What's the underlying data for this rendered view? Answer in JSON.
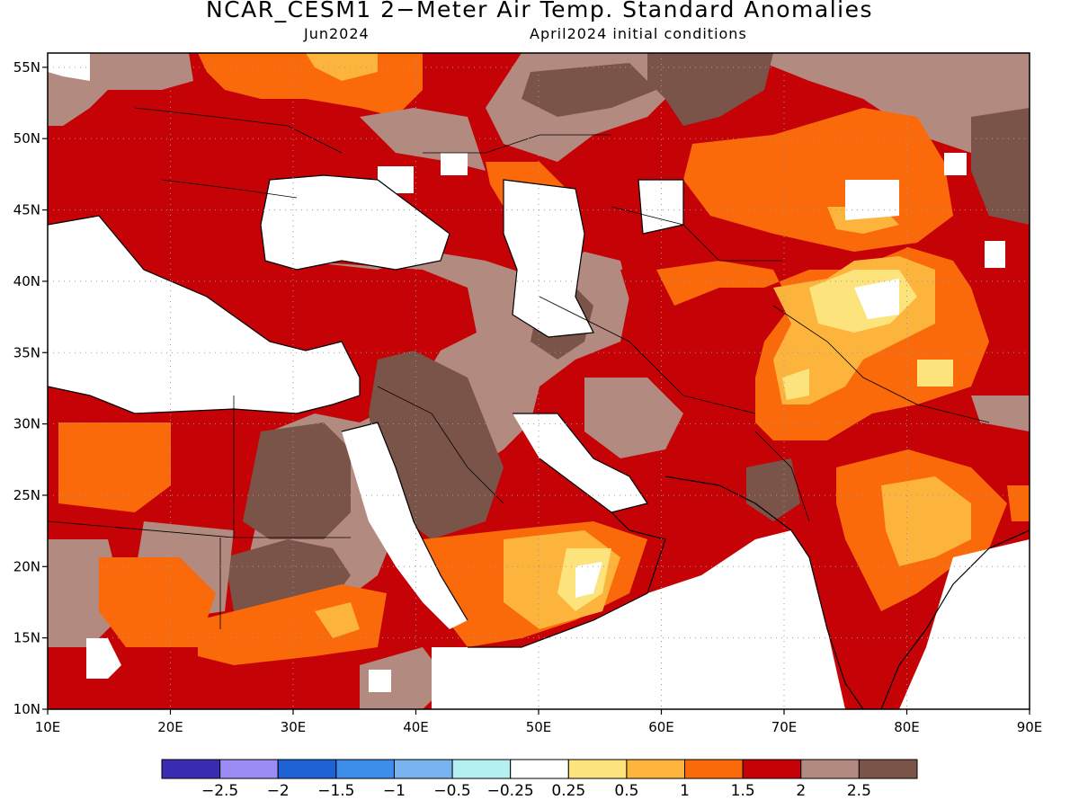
{
  "title": "NCAR_CESM1 2−Meter Air Temp. Standard Anomalies",
  "subtitle_left": "Jun2024",
  "subtitle_right": "April2024 initial conditions",
  "map_extent": {
    "lon_min": 10,
    "lon_max": 90,
    "lat_min": 10,
    "lat_max": 56
  },
  "lat_ticks": [
    "10N",
    "15N",
    "20N",
    "25N",
    "30N",
    "35N",
    "40N",
    "45N",
    "50N",
    "55N"
  ],
  "lon_ticks": [
    "10E",
    "20E",
    "30E",
    "40E",
    "50E",
    "60E",
    "70E",
    "80E",
    "90E"
  ],
  "colors": {
    "c_-2.5": "#3a2db2",
    "c_-2": "#9b8cf5",
    "c_-1.5": "#1e62d6",
    "c_-1": "#3d8eea",
    "c_-0.5": "#78b5f0",
    "c_-0.25": "#b4f0f2",
    "c_0": "#ffffff",
    "c_0.25": "#fde37c",
    "c_0.5": "#fdb43c",
    "c_1": "#fa6a0a",
    "c_1.5": "#c50307",
    "c_2": "#b38a80",
    "c_2.5": "#7b5449"
  },
  "colorbar": {
    "colors": [
      "#3a2db2",
      "#9b8cf5",
      "#1e62d6",
      "#3d8eea",
      "#78b5f0",
      "#b4f0f2",
      "#ffffff",
      "#fde37c",
      "#fdb43c",
      "#fa6a0a",
      "#c50307",
      "#b38a80",
      "#7b5449"
    ],
    "labels": [
      "−2.5",
      "−2",
      "−1.5",
      "−1",
      "−0.5",
      "−0.25",
      "0.25",
      "0.5",
      "1",
      "1.5",
      "2",
      "2.5"
    ]
  }
}
